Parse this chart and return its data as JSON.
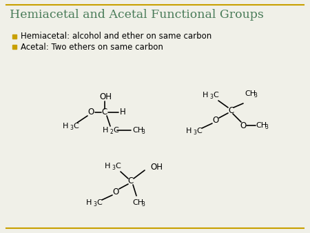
{
  "title": "Hemiacetal and Acetal Functional Groups",
  "title_color": "#4a7c59",
  "title_fontsize": 12.5,
  "bullet1": "Hemiacetal: alcohol and ether on same carbon",
  "bullet2": "Acetal: Two ethers on same carbon",
  "bullet_color": "#c8a000",
  "text_color": "#000000",
  "bg_color": "#f0f0e8",
  "border_color": "#c8a000",
  "bond_color": "#000000",
  "lw": 1.2
}
